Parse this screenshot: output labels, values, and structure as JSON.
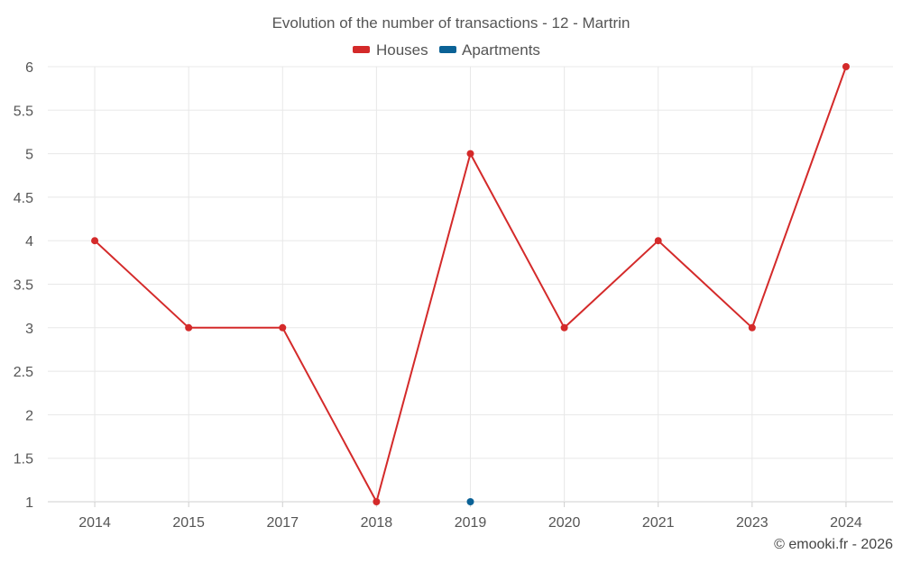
{
  "chart_data": {
    "type": "line",
    "title": "Evolution of the number of transactions - 12 - Martrin",
    "categories": [
      "2014",
      "2015",
      "2017",
      "2018",
      "2019",
      "2020",
      "2021",
      "2023",
      "2024"
    ],
    "series": [
      {
        "name": "Houses",
        "color": "#d42a2a",
        "values": [
          4,
          3,
          3,
          1,
          5,
          3,
          4,
          3,
          6
        ]
      },
      {
        "name": "Apartments",
        "color": "#0b6296",
        "values": [
          null,
          null,
          null,
          null,
          1,
          null,
          null,
          null,
          null
        ]
      }
    ],
    "ylim": [
      1,
      6
    ],
    "yticks": [
      "1",
      "1.5",
      "2",
      "2.5",
      "3",
      "3.5",
      "4",
      "4.5",
      "5",
      "5.5",
      "6"
    ],
    "grid": true,
    "legend_position": "top-center"
  },
  "credit": "© emooki.fr - 2026"
}
